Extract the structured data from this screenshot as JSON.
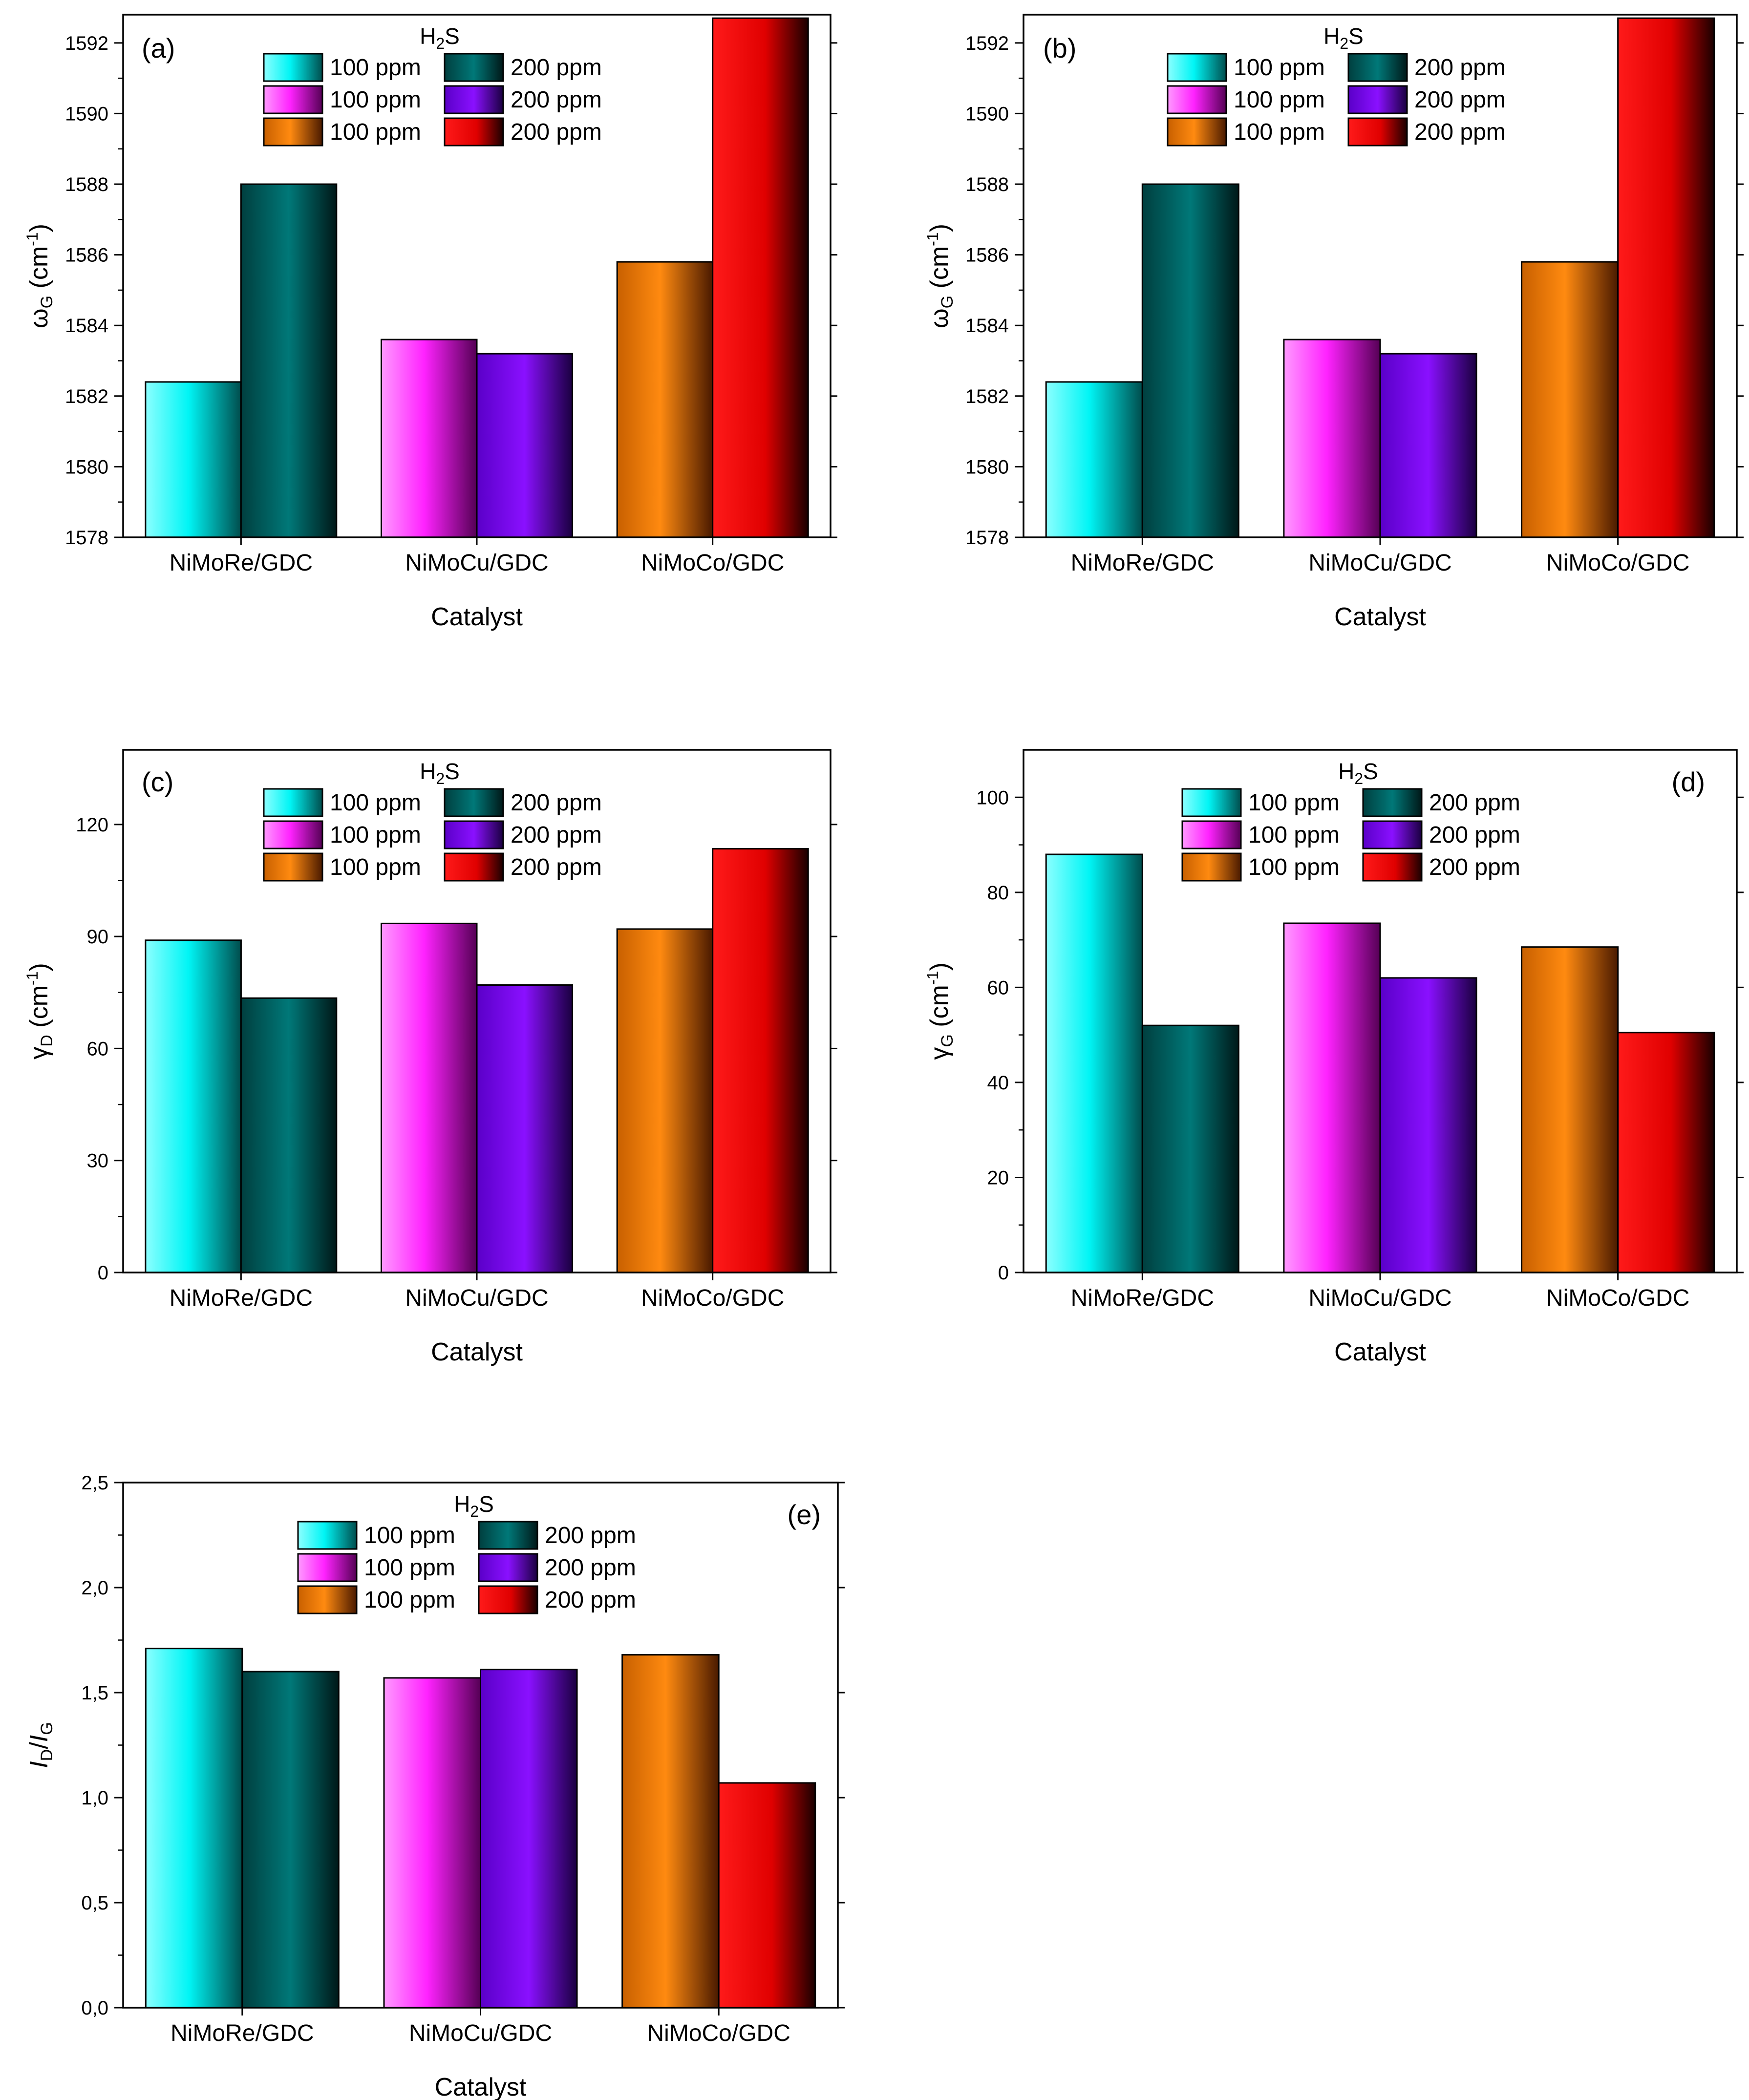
{
  "colors": {
    "cyan": "#00ffff",
    "teal": "#006b6b",
    "magenta": "#ff33ff",
    "violet": "#7a00ff",
    "orange": "#ff8000",
    "red": "#ff0000"
  },
  "legend": {
    "title": "H₂S",
    "title_main": "H",
    "title_sub": "2",
    "title_end": "S",
    "rows": [
      [
        {
          "label": "100 ppm",
          "color": "cyan"
        },
        {
          "label": "200 ppm",
          "color": "teal"
        }
      ],
      [
        {
          "label": "100 ppm",
          "color": "magenta"
        },
        {
          "label": "200 ppm",
          "color": "violet"
        }
      ],
      [
        {
          "label": "100 ppm",
          "color": "orange"
        },
        {
          "label": "200 ppm",
          "color": "red"
        }
      ]
    ]
  },
  "chart_data": [
    {
      "id": "a",
      "panel_label": "(a)",
      "type": "bar",
      "xlabel": "Catalyst",
      "ylabel": {
        "main": "ω",
        "sub": "G",
        "unit_pre": " (cm",
        "unit_sup": "-1",
        "unit_post": ")"
      },
      "categories": [
        "NiMoRe/GDC",
        "NiMoCu/GDC",
        "NiMoCo/GDC"
      ],
      "series": [
        {
          "name": "100 ppm",
          "colors": [
            "cyan",
            "magenta",
            "orange"
          ],
          "values": [
            1582.4,
            1583.6,
            1585.8
          ]
        },
        {
          "name": "200 ppm",
          "colors": [
            "teal",
            "violet",
            "red"
          ],
          "values": [
            1588.0,
            1583.2,
            1592.7
          ]
        }
      ],
      "ylim": [
        1578,
        1592.8
      ],
      "yticks": [
        1578,
        1580,
        1582,
        1584,
        1586,
        1588,
        1590,
        1592
      ],
      "ytick_labels": [
        "1578",
        "1580",
        "1582",
        "1584",
        "1586",
        "1588",
        "1590",
        "1592"
      ]
    },
    {
      "id": "b",
      "panel_label": "(b)",
      "type": "bar",
      "xlabel": "Catalyst",
      "ylabel": {
        "main": "ω",
        "sub": "G",
        "unit_pre": " (cm",
        "unit_sup": "-1",
        "unit_post": ")"
      },
      "categories": [
        "NiMoRe/GDC",
        "NiMoCu/GDC",
        "NiMoCo/GDC"
      ],
      "series": [
        {
          "name": "100 ppm",
          "colors": [
            "cyan",
            "magenta",
            "orange"
          ],
          "values": [
            1582.4,
            1583.6,
            1585.8
          ]
        },
        {
          "name": "200 ppm",
          "colors": [
            "teal",
            "violet",
            "red"
          ],
          "values": [
            1588.0,
            1583.2,
            1592.7
          ]
        }
      ],
      "ylim": [
        1578,
        1592.8
      ],
      "yticks": [
        1578,
        1580,
        1582,
        1584,
        1586,
        1588,
        1590,
        1592
      ],
      "ytick_labels": [
        "1578",
        "1580",
        "1582",
        "1584",
        "1586",
        "1588",
        "1590",
        "1592"
      ]
    },
    {
      "id": "c",
      "panel_label": "(c)",
      "type": "bar",
      "xlabel": "Catalyst",
      "ylabel": {
        "main": "γ",
        "sub": "D",
        "unit_pre": " (cm",
        "unit_sup": "-1",
        "unit_post": ")"
      },
      "categories": [
        "NiMoRe/GDC",
        "NiMoCu/GDC",
        "NiMoCo/GDC"
      ],
      "series": [
        {
          "name": "100 ppm",
          "colors": [
            "cyan",
            "magenta",
            "orange"
          ],
          "values": [
            89,
            93.5,
            92
          ]
        },
        {
          "name": "200 ppm",
          "colors": [
            "teal",
            "violet",
            "red"
          ],
          "values": [
            73.5,
            77,
            113.5
          ]
        }
      ],
      "ylim": [
        0,
        140
      ],
      "yticks": [
        0,
        30,
        60,
        90,
        120
      ],
      "ytick_labels": [
        "0",
        "30",
        "60",
        "90",
        "120"
      ]
    },
    {
      "id": "d",
      "panel_label": "(d)",
      "type": "bar",
      "xlabel": "Catalyst",
      "ylabel": {
        "main": "γ",
        "sub": "G",
        "unit_pre": " (cm",
        "unit_sup": "-1",
        "unit_post": ")"
      },
      "categories": [
        "NiMoRe/GDC",
        "NiMoCu/GDC",
        "NiMoCo/GDC"
      ],
      "series": [
        {
          "name": "100 ppm",
          "colors": [
            "cyan",
            "magenta",
            "orange"
          ],
          "values": [
            88,
            73.5,
            68.5
          ]
        },
        {
          "name": "200 ppm",
          "colors": [
            "teal",
            "violet",
            "red"
          ],
          "values": [
            52,
            62,
            50.5
          ]
        }
      ],
      "ylim": [
        0,
        110
      ],
      "yticks": [
        0,
        20,
        40,
        60,
        80,
        100
      ],
      "ytick_labels": [
        "0",
        "20",
        "40",
        "60",
        "80",
        "100"
      ]
    },
    {
      "id": "e",
      "panel_label": "(e)",
      "type": "bar",
      "xlabel": "Catalyst",
      "ylabel": {
        "main": "I",
        "sub": "D",
        "mid": "/I",
        "sub2": "G"
      },
      "categories": [
        "NiMoRe/GDC",
        "NiMoCu/GDC",
        "NiMoCo/GDC"
      ],
      "series": [
        {
          "name": "100 ppm",
          "colors": [
            "cyan",
            "magenta",
            "orange"
          ],
          "values": [
            1.71,
            1.57,
            1.68
          ]
        },
        {
          "name": "200 ppm",
          "colors": [
            "teal",
            "violet",
            "red"
          ],
          "values": [
            1.6,
            1.61,
            1.07
          ]
        }
      ],
      "ylim": [
        0,
        2.5
      ],
      "yticks": [
        0,
        0.5,
        1.0,
        1.5,
        2.0,
        2.5
      ],
      "ytick_labels": [
        "0,0",
        "0,5",
        "1,0",
        "1,5",
        "2,0",
        "2,5"
      ]
    }
  ]
}
